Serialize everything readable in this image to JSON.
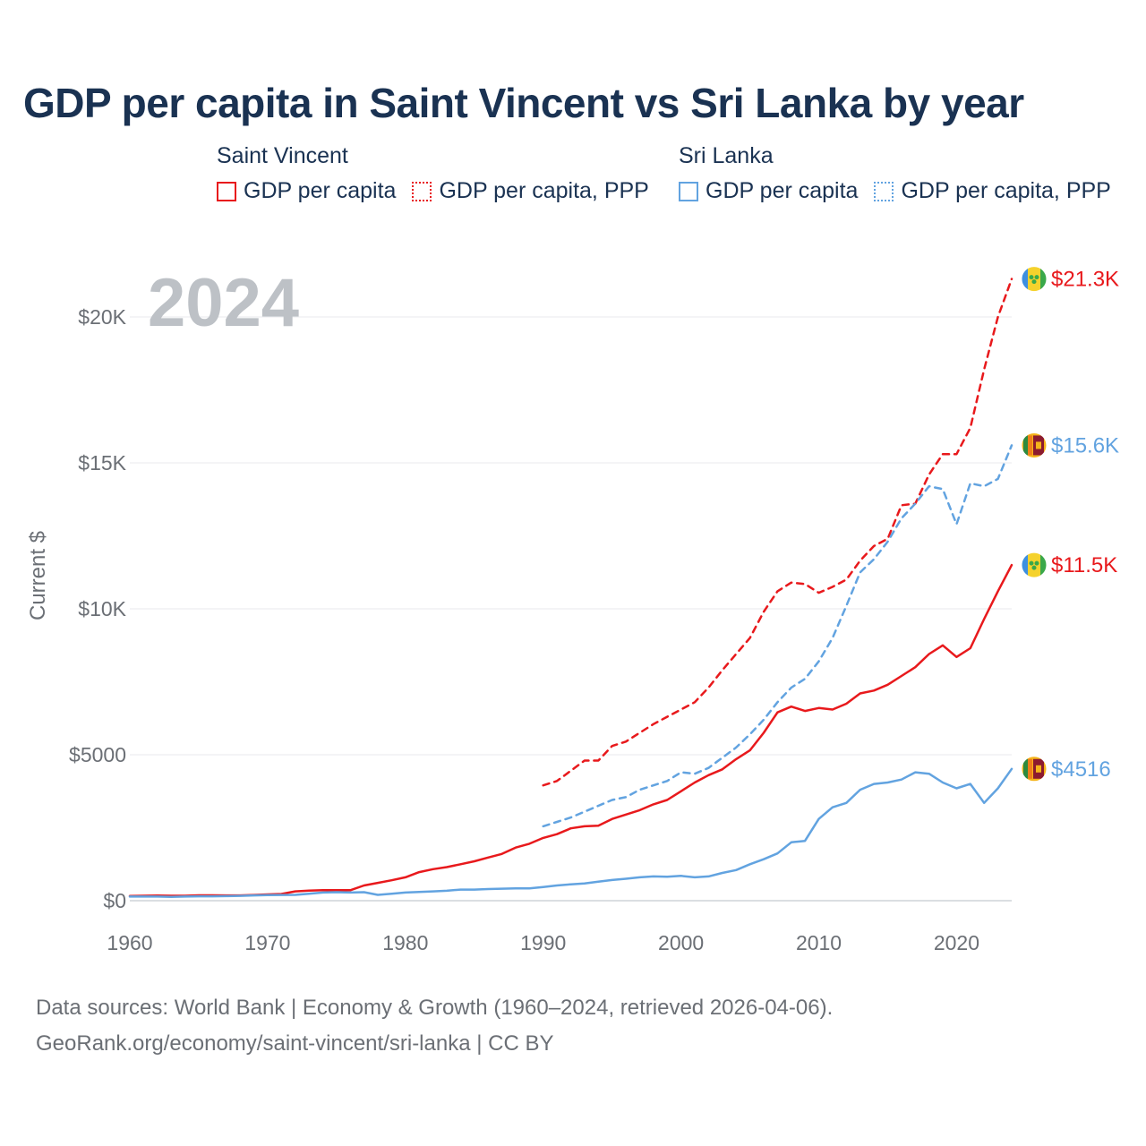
{
  "chart_data": {
    "type": "line",
    "title": "GDP per capita in Saint Vincent vs Sri Lanka by year",
    "year_label": "2024",
    "ylabel": "Current $",
    "xlabel": "",
    "xlim": [
      1960,
      2024
    ],
    "ylim": [
      0,
      22000
    ],
    "x_ticks": [
      1960,
      1970,
      1980,
      1990,
      2000,
      2010,
      2020
    ],
    "y_ticks": [
      {
        "value": 0,
        "label": "$0"
      },
      {
        "value": 5000,
        "label": "$5000"
      },
      {
        "value": 10000,
        "label": "$10K"
      },
      {
        "value": 15000,
        "label": "$15K"
      },
      {
        "value": 20000,
        "label": "$20K"
      }
    ],
    "grid": true,
    "legend_groups": [
      {
        "name": "Saint Vincent",
        "color": "#e8191c",
        "items": [
          "GDP per capita",
          "GDP per capita, PPP"
        ]
      },
      {
        "name": "Sri Lanka",
        "color": "#62a3e0",
        "items": [
          "GDP per capita",
          "GDP per capita, PPP"
        ]
      }
    ],
    "series": [
      {
        "name": "Saint Vincent GDP per capita, PPP",
        "color": "#e8191c",
        "style": "dashed",
        "flag": "saint-vincent",
        "end_label": "$21.3K",
        "x": [
          1990,
          1991,
          1992,
          1993,
          1994,
          1995,
          1996,
          1997,
          1998,
          1999,
          2000,
          2001,
          2002,
          2003,
          2004,
          2005,
          2006,
          2007,
          2008,
          2009,
          2010,
          2011,
          2012,
          2013,
          2014,
          2015,
          2016,
          2017,
          2018,
          2019,
          2020,
          2021,
          2022,
          2023,
          2024
        ],
        "y": [
          3950,
          4100,
          4450,
          4800,
          4800,
          5300,
          5450,
          5750,
          6050,
          6300,
          6550,
          6800,
          7300,
          7900,
          8450,
          9000,
          9900,
          10600,
          10900,
          10850,
          10550,
          10750,
          11000,
          11650,
          12150,
          12400,
          13550,
          13600,
          14600,
          15300,
          15300,
          16200,
          18200,
          20000,
          21300
        ]
      },
      {
        "name": "Sri Lanka GDP per capita, PPP",
        "color": "#62a3e0",
        "style": "dashed",
        "flag": "sri-lanka",
        "end_label": "$15.6K",
        "x": [
          1990,
          1991,
          1992,
          1993,
          1994,
          1995,
          1996,
          1997,
          1998,
          1999,
          2000,
          2001,
          2002,
          2003,
          2004,
          2005,
          2006,
          2007,
          2008,
          2009,
          2010,
          2011,
          2012,
          2013,
          2014,
          2015,
          2016,
          2017,
          2018,
          2019,
          2020,
          2021,
          2022,
          2023,
          2024
        ],
        "y": [
          2550,
          2700,
          2850,
          3050,
          3250,
          3450,
          3550,
          3800,
          3950,
          4100,
          4400,
          4350,
          4550,
          4900,
          5250,
          5700,
          6200,
          6800,
          7300,
          7600,
          8200,
          9000,
          10100,
          11250,
          11700,
          12300,
          13100,
          13600,
          14200,
          14100,
          12900,
          14300,
          14200,
          14450,
          15600
        ]
      },
      {
        "name": "Saint Vincent GDP per capita",
        "color": "#e8191c",
        "style": "solid",
        "flag": "saint-vincent",
        "end_label": "$11.5K",
        "x": [
          1960,
          1961,
          1962,
          1963,
          1964,
          1965,
          1966,
          1967,
          1968,
          1969,
          1970,
          1971,
          1972,
          1973,
          1974,
          1975,
          1976,
          1977,
          1978,
          1979,
          1980,
          1981,
          1982,
          1983,
          1984,
          1985,
          1986,
          1987,
          1988,
          1989,
          1990,
          1991,
          1992,
          1993,
          1994,
          1995,
          1996,
          1997,
          1998,
          1999,
          2000,
          2001,
          2002,
          2003,
          2004,
          2005,
          2006,
          2007,
          2008,
          2009,
          2010,
          2011,
          2012,
          2013,
          2014,
          2015,
          2016,
          2017,
          2018,
          2019,
          2020,
          2021,
          2022,
          2023,
          2024
        ],
        "y": [
          160,
          170,
          175,
          170,
          170,
          185,
          185,
          180,
          180,
          195,
          215,
          230,
          320,
          345,
          360,
          360,
          360,
          520,
          610,
          700,
          800,
          980,
          1080,
          1150,
          1250,
          1350,
          1480,
          1600,
          1820,
          1950,
          2150,
          2280,
          2480,
          2550,
          2570,
          2800,
          2950,
          3100,
          3300,
          3450,
          3750,
          4050,
          4300,
          4500,
          4850,
          5150,
          5750,
          6450,
          6650,
          6500,
          6600,
          6550,
          6750,
          7100,
          7200,
          7400,
          7700,
          8000,
          8450,
          8750,
          8350,
          8650,
          9650,
          10600,
          11500
        ]
      },
      {
        "name": "Sri Lanka GDP per capita",
        "color": "#62a3e0",
        "style": "solid",
        "flag": "sri-lanka",
        "end_label": "$4516",
        "x": [
          1960,
          1961,
          1962,
          1963,
          1964,
          1965,
          1966,
          1967,
          1968,
          1969,
          1970,
          1971,
          1972,
          1973,
          1974,
          1975,
          1976,
          1977,
          1978,
          1979,
          1980,
          1981,
          1982,
          1983,
          1984,
          1985,
          1986,
          1987,
          1988,
          1989,
          1990,
          1991,
          1992,
          1993,
          1994,
          1995,
          1996,
          1997,
          1998,
          1999,
          2000,
          2001,
          2002,
          2003,
          2004,
          2005,
          2006,
          2007,
          2008,
          2009,
          2010,
          2011,
          2012,
          2013,
          2014,
          2015,
          2016,
          2017,
          2018,
          2019,
          2020,
          2021,
          2022,
          2023,
          2024
        ],
        "y": [
          140,
          140,
          140,
          130,
          140,
          150,
          150,
          155,
          165,
          180,
          190,
          195,
          200,
          235,
          280,
          290,
          280,
          290,
          200,
          240,
          280,
          300,
          320,
          340,
          380,
          380,
          400,
          410,
          420,
          420,
          470,
          520,
          560,
          590,
          650,
          710,
          750,
          800,
          830,
          820,
          850,
          800,
          830,
          950,
          1050,
          1250,
          1420,
          1620,
          2000,
          2050,
          2800,
          3200,
          3350,
          3800,
          4000,
          4050,
          4150,
          4400,
          4350,
          4050,
          3850,
          4000,
          3350,
          3850,
          4516
        ]
      }
    ]
  },
  "footer": {
    "line1": "Data sources: World Bank | Economy & Growth (1960–2024, retrieved 2026-04-06).",
    "line2": "GeoRank.org/economy/saint-vincent/sri-lanka | CC BY"
  }
}
